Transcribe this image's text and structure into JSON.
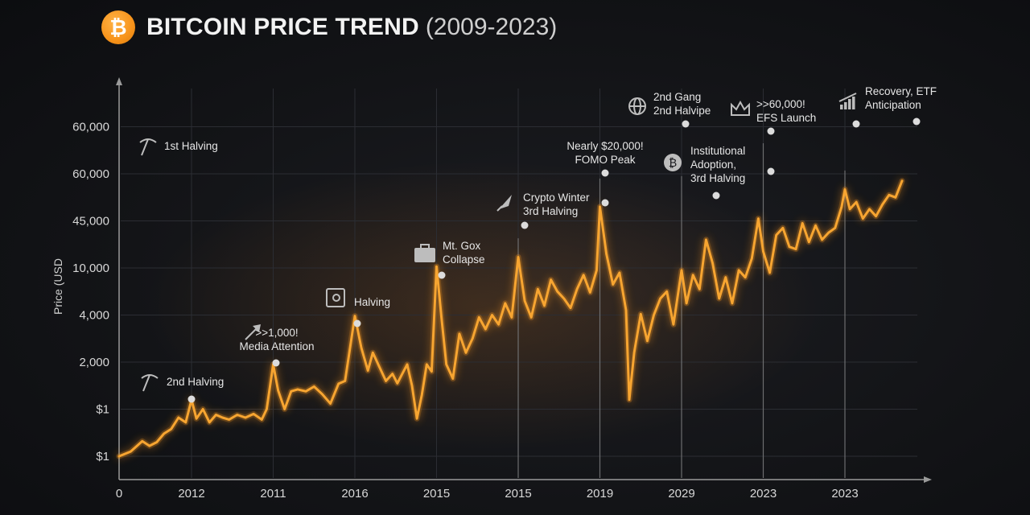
{
  "header": {
    "logo_symbol": "₿",
    "title": "BITCOIN PRICE TREND",
    "title_years": "(2009-2023)"
  },
  "colors": {
    "line": "#f7a531",
    "glow": "#ff9a1f",
    "logo": "#f7931a",
    "axis": "#9a9a9a",
    "grid": "#2b2d33"
  },
  "chart_data": {
    "type": "line",
    "title": "BITCOIN PRICE TREND (2009-2023)",
    "ylabel": "Price (USD",
    "xlabel": "",
    "grid": true,
    "legend": "none",
    "note": "categorical, non-linear axis labels as printed in the source",
    "x_ticks": [
      "0",
      "2012",
      "2011",
      "2016",
      "2015",
      "2015",
      "2019",
      "2029",
      "2023",
      "2023"
    ],
    "y_ticks": [
      "$1",
      "$1",
      "2,000",
      "4,000",
      "10,000",
      "45,000",
      "60,000",
      "60,000"
    ],
    "series": [
      {
        "values": [
          [
            0.0,
            0.0
          ],
          [
            0.16,
            0.1
          ],
          [
            0.32,
            0.32
          ],
          [
            0.42,
            0.22
          ],
          [
            0.52,
            0.3
          ],
          [
            0.62,
            0.48
          ],
          [
            0.72,
            0.58
          ],
          [
            0.82,
            0.82
          ],
          [
            0.92,
            0.72
          ],
          [
            1.0,
            1.2
          ],
          [
            1.06,
            0.8
          ],
          [
            1.14,
            1.0
          ],
          [
            1.22,
            0.72
          ],
          [
            1.3,
            0.88
          ],
          [
            1.38,
            0.82
          ],
          [
            1.46,
            0.78
          ],
          [
            1.56,
            0.88
          ],
          [
            1.66,
            0.82
          ],
          [
            1.76,
            0.9
          ],
          [
            1.86,
            0.78
          ],
          [
            1.92,
            1.0
          ],
          [
            2.0,
            1.95
          ],
          [
            2.06,
            1.4
          ],
          [
            2.14,
            1.0
          ],
          [
            2.22,
            1.38
          ],
          [
            2.3,
            1.42
          ],
          [
            2.4,
            1.38
          ],
          [
            2.5,
            1.48
          ],
          [
            2.6,
            1.32
          ],
          [
            2.7,
            1.12
          ],
          [
            2.8,
            1.54
          ],
          [
            2.88,
            1.6
          ],
          [
            3.0,
            2.98
          ],
          [
            3.08,
            2.3
          ],
          [
            3.16,
            1.82
          ],
          [
            3.22,
            2.2
          ],
          [
            3.3,
            1.9
          ],
          [
            3.38,
            1.6
          ],
          [
            3.46,
            1.75
          ],
          [
            3.52,
            1.55
          ],
          [
            3.58,
            1.75
          ],
          [
            3.64,
            1.95
          ],
          [
            3.7,
            1.5
          ],
          [
            3.76,
            0.8
          ],
          [
            3.82,
            1.3
          ],
          [
            3.88,
            1.95
          ],
          [
            3.94,
            1.8
          ],
          [
            4.0,
            4.03
          ],
          [
            4.06,
            2.95
          ],
          [
            4.12,
            1.95
          ],
          [
            4.2,
            1.65
          ],
          [
            4.28,
            2.6
          ],
          [
            4.36,
            2.2
          ],
          [
            4.44,
            2.5
          ],
          [
            4.52,
            2.95
          ],
          [
            4.6,
            2.7
          ],
          [
            4.68,
            3.0
          ],
          [
            4.76,
            2.8
          ],
          [
            4.84,
            3.25
          ],
          [
            4.92,
            2.95
          ],
          [
            5.0,
            4.23
          ],
          [
            5.08,
            3.3
          ],
          [
            5.16,
            2.95
          ],
          [
            5.24,
            3.55
          ],
          [
            5.32,
            3.2
          ],
          [
            5.4,
            3.75
          ],
          [
            5.48,
            3.5
          ],
          [
            5.56,
            3.35
          ],
          [
            5.64,
            3.15
          ],
          [
            5.72,
            3.55
          ],
          [
            5.8,
            3.85
          ],
          [
            5.88,
            3.48
          ],
          [
            5.96,
            3.95
          ],
          [
            6.0,
            5.3
          ],
          [
            6.08,
            4.3
          ],
          [
            6.16,
            3.65
          ],
          [
            6.24,
            3.9
          ],
          [
            6.32,
            3.1
          ],
          [
            6.36,
            1.2
          ],
          [
            6.42,
            2.2
          ],
          [
            6.5,
            3.02
          ],
          [
            6.58,
            2.45
          ],
          [
            6.66,
            3.0
          ],
          [
            6.74,
            3.35
          ],
          [
            6.82,
            3.5
          ],
          [
            6.9,
            2.8
          ],
          [
            7.0,
            3.95
          ],
          [
            7.06,
            3.25
          ],
          [
            7.14,
            3.85
          ],
          [
            7.22,
            3.55
          ],
          [
            7.3,
            4.6
          ],
          [
            7.38,
            4.1
          ],
          [
            7.46,
            3.35
          ],
          [
            7.54,
            3.8
          ],
          [
            7.62,
            3.25
          ],
          [
            7.7,
            3.95
          ],
          [
            7.78,
            3.8
          ],
          [
            7.86,
            4.2
          ],
          [
            7.94,
            5.05
          ],
          [
            8.0,
            4.35
          ],
          [
            8.08,
            3.9
          ],
          [
            8.16,
            4.7
          ],
          [
            8.24,
            4.85
          ],
          [
            8.32,
            4.45
          ],
          [
            8.4,
            4.4
          ],
          [
            8.48,
            4.95
          ],
          [
            8.56,
            4.55
          ],
          [
            8.64,
            4.9
          ],
          [
            8.72,
            4.6
          ],
          [
            8.8,
            4.75
          ],
          [
            8.88,
            4.85
          ],
          [
            8.96,
            5.3
          ],
          [
            9.0,
            5.67
          ],
          [
            9.06,
            5.25
          ],
          [
            9.14,
            5.4
          ],
          [
            9.22,
            5.05
          ],
          [
            9.3,
            5.25
          ],
          [
            9.38,
            5.1
          ],
          [
            9.46,
            5.35
          ],
          [
            9.54,
            5.55
          ],
          [
            9.62,
            5.5
          ],
          [
            9.7,
            5.85
          ]
        ]
      }
    ],
    "annotations": [
      {
        "lines": [
          "1st Halving"
        ],
        "icon": "pickaxe-icon"
      },
      {
        "lines": [
          "2nd Halving"
        ],
        "icon": "pickaxe-icon"
      },
      {
        "lines": [
          ">>1,000!",
          "Media Attention"
        ],
        "icon": "arrow-up-icon"
      },
      {
        "lines": [
          "Halving"
        ],
        "icon": "vault-icon"
      },
      {
        "lines": [
          "Mt. Gox",
          "Collapse"
        ],
        "icon": "briefcase-icon"
      },
      {
        "lines": [
          "Crypto Winter",
          "3rd Halving"
        ],
        "icon": "rocket-icon"
      },
      {
        "lines": [
          "Nearly $20,000!",
          "FOMO Peak"
        ],
        "icon": ""
      },
      {
        "lines": [
          "2nd Gang",
          "2nd Halvipe"
        ],
        "icon": "globe-icon"
      },
      {
        "lines": [
          "Institutional",
          "Adoption,",
          "3rd Halving"
        ],
        "icon": "coin-icon"
      },
      {
        "lines": [
          ">>60,000!",
          "EFS Launch"
        ],
        "icon": "crown-icon"
      },
      {
        "lines": [
          "Recovery, ETF",
          "Anticipation"
        ],
        "icon": "growth-chart-icon"
      }
    ]
  }
}
